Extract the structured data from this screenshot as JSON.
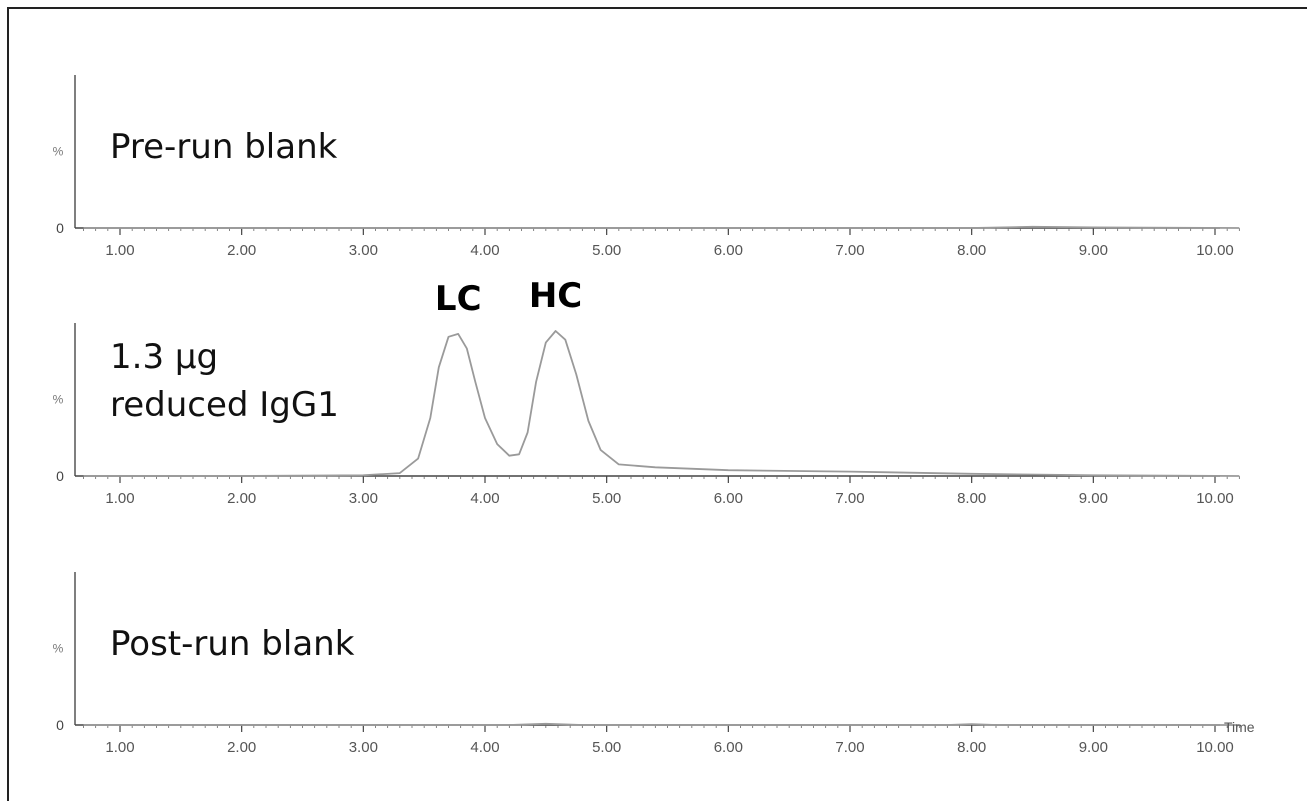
{
  "chart_data": [
    {
      "type": "line",
      "panel_label": "Pre-run blank",
      "ylabel": "%",
      "y_zero_label": "0",
      "xlim": [
        0.65,
        10.25
      ],
      "ylim": [
        0,
        100
      ],
      "x_ticks": [
        "1.00",
        "2.00",
        "3.00",
        "4.00",
        "5.00",
        "6.00",
        "7.00",
        "8.00",
        "9.00",
        "10.00"
      ],
      "series": [
        {
          "x": [
            0.7,
            2.0,
            4.0,
            6.0,
            8.0,
            8.5,
            9.0,
            10.2
          ],
          "y": [
            0,
            0,
            0,
            0,
            0,
            0.8,
            0.4,
            0
          ]
        }
      ]
    },
    {
      "type": "line",
      "panel_label_lines": [
        "1.3 μg",
        "reduced IgG1"
      ],
      "ylabel": "%",
      "y_zero_label": "0",
      "xlim": [
        0.65,
        10.25
      ],
      "ylim": [
        0,
        100
      ],
      "x_ticks": [
        "1.00",
        "2.00",
        "3.00",
        "4.00",
        "5.00",
        "6.00",
        "7.00",
        "8.00",
        "9.00",
        "10.00"
      ],
      "series": [
        {
          "x": [
            0.7,
            2.0,
            3.0,
            3.3,
            3.45,
            3.55,
            3.62,
            3.7,
            3.78,
            3.85,
            3.92,
            4.0,
            4.1,
            4.2,
            4.28,
            4.35,
            4.42,
            4.5,
            4.58,
            4.66,
            4.75,
            4.85,
            4.95,
            5.1,
            5.4,
            6.0,
            7.0,
            8.0,
            9.0,
            10.2
          ],
          "y": [
            0,
            0,
            0.5,
            2,
            12,
            40,
            75,
            96,
            98,
            88,
            65,
            40,
            22,
            14,
            15,
            30,
            65,
            92,
            100,
            94,
            70,
            38,
            18,
            8,
            6,
            4,
            3,
            1.5,
            0.5,
            0
          ]
        }
      ],
      "annotations": [
        {
          "text": "LC",
          "x": 3.78,
          "y": 98
        },
        {
          "text": "HC",
          "x": 4.58,
          "y": 100
        }
      ]
    },
    {
      "type": "line",
      "panel_label": "Post-run blank",
      "ylabel": "%",
      "y_zero_label": "0",
      "xlabel": "Time",
      "xlim": [
        0.65,
        10.25
      ],
      "ylim": [
        0,
        100
      ],
      "x_ticks": [
        "1.00",
        "2.00",
        "3.00",
        "4.00",
        "5.00",
        "6.00",
        "7.00",
        "8.00",
        "9.00",
        "10.00"
      ],
      "series": [
        {
          "x": [
            0.7,
            3.0,
            4.2,
            4.5,
            4.8,
            6.0,
            7.8,
            8.0,
            8.2,
            10.2
          ],
          "y": [
            0,
            0,
            0,
            0.8,
            0,
            0,
            0,
            0.6,
            0,
            0
          ]
        }
      ]
    }
  ]
}
